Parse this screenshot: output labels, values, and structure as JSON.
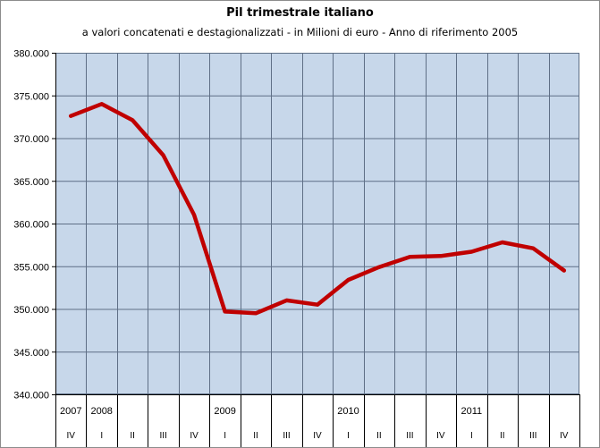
{
  "colors": {
    "plot_background": "#c7d7ea",
    "gridline": "#5f6f86",
    "series_line": "#c00000",
    "axis": "#000000",
    "frame": "#8c8c8c"
  },
  "chart_data": {
    "type": "line",
    "title": "Pil trimestrale italiano",
    "subtitle": "a valori concatenati e destagionalizzati - in Milioni di euro - Anno di riferimento 2005",
    "xlabel": "",
    "ylabel": "",
    "ylim": [
      340000,
      380000
    ],
    "y_ticks": [
      340000,
      345000,
      350000,
      355000,
      360000,
      365000,
      370000,
      375000,
      380000
    ],
    "y_tick_labels": [
      "340.000",
      "345.000",
      "350.000",
      "355.000",
      "360.000",
      "365.000",
      "370.000",
      "375.000",
      "380.000"
    ],
    "grid": true,
    "legend": "none",
    "categories": [
      {
        "year": "2007",
        "quarter": "IV"
      },
      {
        "year": "2008",
        "quarter": "I"
      },
      {
        "year": "",
        "quarter": "II"
      },
      {
        "year": "",
        "quarter": "III"
      },
      {
        "year": "",
        "quarter": "IV"
      },
      {
        "year": "2009",
        "quarter": "I"
      },
      {
        "year": "",
        "quarter": "II"
      },
      {
        "year": "",
        "quarter": "III"
      },
      {
        "year": "",
        "quarter": "IV"
      },
      {
        "year": "2010",
        "quarter": "I"
      },
      {
        "year": "",
        "quarter": "II"
      },
      {
        "year": "",
        "quarter": "III"
      },
      {
        "year": "",
        "quarter": "IV"
      },
      {
        "year": "2011",
        "quarter": "I"
      },
      {
        "year": "",
        "quarter": "II"
      },
      {
        "year": "",
        "quarter": "III"
      },
      {
        "year": "",
        "quarter": "IV"
      }
    ],
    "series": [
      {
        "values": [
          372600,
          374000,
          372100,
          368000,
          361000,
          349700,
          349500,
          351000,
          350500,
          353400,
          354900,
          356100,
          356200,
          356700,
          357800,
          357100,
          354500
        ]
      }
    ]
  }
}
